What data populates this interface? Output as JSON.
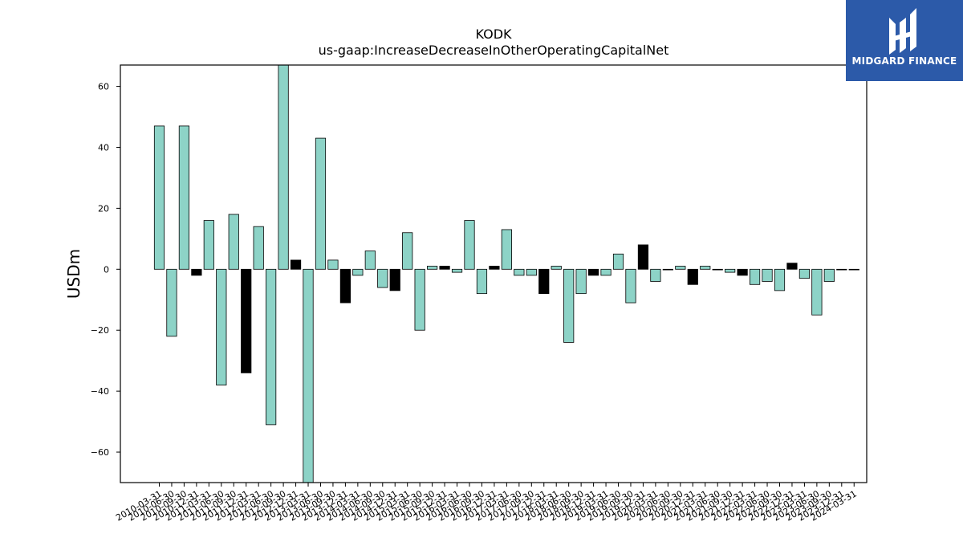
{
  "chart_data": {
    "type": "bar",
    "title": "KODK",
    "subtitle": "us-gaap:IncreaseDecreaseInOtherOperatingCapitalNet",
    "xlabel": "",
    "ylabel": "USDm",
    "ylim": [
      -70,
      67
    ],
    "yticks": [
      -60,
      -40,
      -20,
      0,
      20,
      40,
      60
    ],
    "grid": false,
    "colors": {
      "quarter": "#8dd3c7",
      "annual": "#000000",
      "edge": "#000000"
    },
    "categories": [
      "2010-03-31",
      "2010-06-30",
      "2010-09-30",
      "2010-12-31",
      "2011-03-31",
      "2011-06-30",
      "2011-09-30",
      "2011-12-31",
      "2012-03-31",
      "2012-06-30",
      "2012-09-30",
      "2012-12-31",
      "2013-03-31",
      "2013-06-30",
      "2013-09-30",
      "2013-12-31",
      "2014-03-31",
      "2014-06-30",
      "2014-09-30",
      "2014-12-31",
      "2015-03-31",
      "2015-06-30",
      "2015-09-30",
      "2015-12-31",
      "2016-03-31",
      "2016-06-30",
      "2016-09-30",
      "2016-12-31",
      "2017-03-31",
      "2017-06-30",
      "2017-09-30",
      "2017-12-31",
      "2018-03-31",
      "2018-06-30",
      "2018-09-30",
      "2018-12-31",
      "2019-03-31",
      "2019-06-30",
      "2019-09-30",
      "2019-12-31",
      "2020-03-31",
      "2020-06-30",
      "2020-09-30",
      "2020-12-31",
      "2021-03-31",
      "2021-06-30",
      "2021-09-30",
      "2021-12-31",
      "2022-03-31",
      "2022-06-30",
      "2022-09-30",
      "2022-12-31",
      "2023-03-31",
      "2023-06-30",
      "2023-09-30",
      "2023-12-31",
      "2024-03-31"
    ],
    "values": [
      47,
      -22,
      47,
      -2,
      16,
      -38,
      18,
      -34,
      14,
      -51,
      67,
      3,
      -70,
      43,
      3,
      -11,
      -2,
      6,
      -6,
      -7,
      12,
      -20,
      1,
      1,
      -1,
      16,
      -8,
      1,
      13,
      -2,
      -2,
      -8,
      1,
      -24,
      -8,
      -2,
      -2,
      5,
      -11,
      8,
      -4,
      0,
      1,
      -5,
      1,
      0,
      -1,
      -2,
      -5,
      -4,
      -7,
      2,
      -3,
      -15,
      -4,
      0,
      0
    ],
    "annual": [
      false,
      false,
      false,
      true,
      false,
      false,
      false,
      true,
      false,
      false,
      false,
      true,
      false,
      false,
      false,
      true,
      false,
      false,
      false,
      true,
      false,
      false,
      false,
      true,
      false,
      false,
      false,
      true,
      false,
      false,
      false,
      true,
      false,
      false,
      false,
      true,
      false,
      false,
      false,
      true,
      false,
      false,
      false,
      true,
      false,
      false,
      false,
      true,
      false,
      false,
      false,
      true,
      false,
      false,
      false,
      true,
      false
    ]
  },
  "logo": {
    "text": "MIDGARD FINANCE",
    "background": "#2c5aa9"
  }
}
